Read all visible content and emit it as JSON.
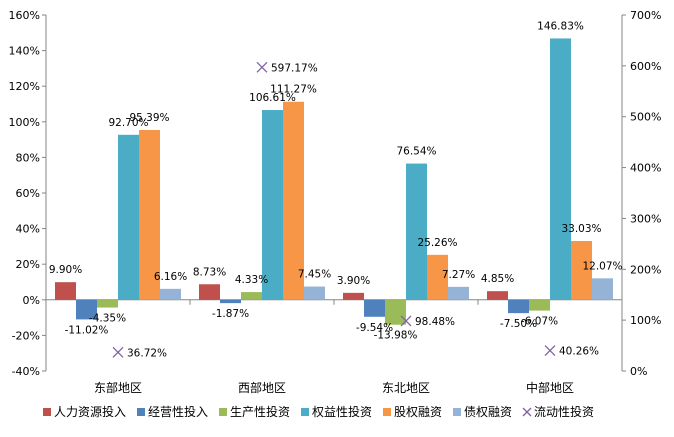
{
  "chart_data": {
    "type": "bar",
    "categories": [
      "东部地区",
      "西部地区",
      "东北地区",
      "中部地区"
    ],
    "y_left": {
      "min": -40,
      "max": 160,
      "step": 20,
      "unit": "%",
      "ticks": [
        "160%",
        "140%",
        "120%",
        "100%",
        "80%",
        "60%",
        "40%",
        "20%",
        "0%",
        "-20%",
        "-40%"
      ]
    },
    "y_right": {
      "min": 0,
      "max": 700,
      "step": 100,
      "unit": "%",
      "ticks": [
        "700%",
        "600%",
        "500%",
        "400%",
        "300%",
        "200%",
        "100%",
        "0%"
      ]
    },
    "series": [
      {
        "name": "人力资源投入",
        "kind": "bar",
        "axis": "left",
        "color": "#C0504D",
        "values": [
          9.9,
          8.73,
          3.9,
          4.85
        ],
        "labels": [
          "9.90%",
          "8.73%",
          "3.90%",
          "4.85%"
        ]
      },
      {
        "name": "经营性投入",
        "kind": "bar",
        "axis": "left",
        "color": "#4F81BD",
        "values": [
          -11.02,
          -1.87,
          -9.54,
          -7.5
        ],
        "labels": [
          "-11.02%",
          "-1.87%",
          "-9.54%",
          "-7.50%"
        ]
      },
      {
        "name": "生产性投资",
        "kind": "bar",
        "axis": "left",
        "color": "#9BBB59",
        "values": [
          -4.35,
          4.33,
          -13.98,
          -6.07
        ],
        "labels": [
          "-4.35%",
          "4.33%",
          "-13.98%",
          "-6.07%"
        ]
      },
      {
        "name": "权益性投资",
        "kind": "bar",
        "axis": "left",
        "color": "#4BACC6",
        "values": [
          92.7,
          106.61,
          76.54,
          146.83
        ],
        "labels": [
          "92.70%",
          "106.61%",
          "76.54%",
          "146.83%"
        ]
      },
      {
        "name": "股权融资",
        "kind": "bar",
        "axis": "left",
        "color": "#F79646",
        "values": [
          95.39,
          111.27,
          25.26,
          33.03
        ],
        "labels": [
          "95.39%",
          "111.27%",
          "25.26%",
          "33.03%"
        ]
      },
      {
        "name": "债权融资",
        "kind": "bar",
        "axis": "left",
        "color": "#95B3D7",
        "values": [
          6.16,
          7.45,
          7.27,
          12.07
        ],
        "labels": [
          "6.16%",
          "7.45%",
          "7.27%",
          "12.07%"
        ]
      },
      {
        "name": "流动性投资",
        "kind": "marker",
        "axis": "right",
        "color": "#8064A2",
        "values": [
          36.72,
          597.17,
          98.48,
          40.26
        ],
        "labels": [
          "36.72%",
          "597.17%",
          "98.48%",
          "40.26%"
        ]
      }
    ],
    "legend": {
      "position": "bottom"
    },
    "grid": false
  }
}
